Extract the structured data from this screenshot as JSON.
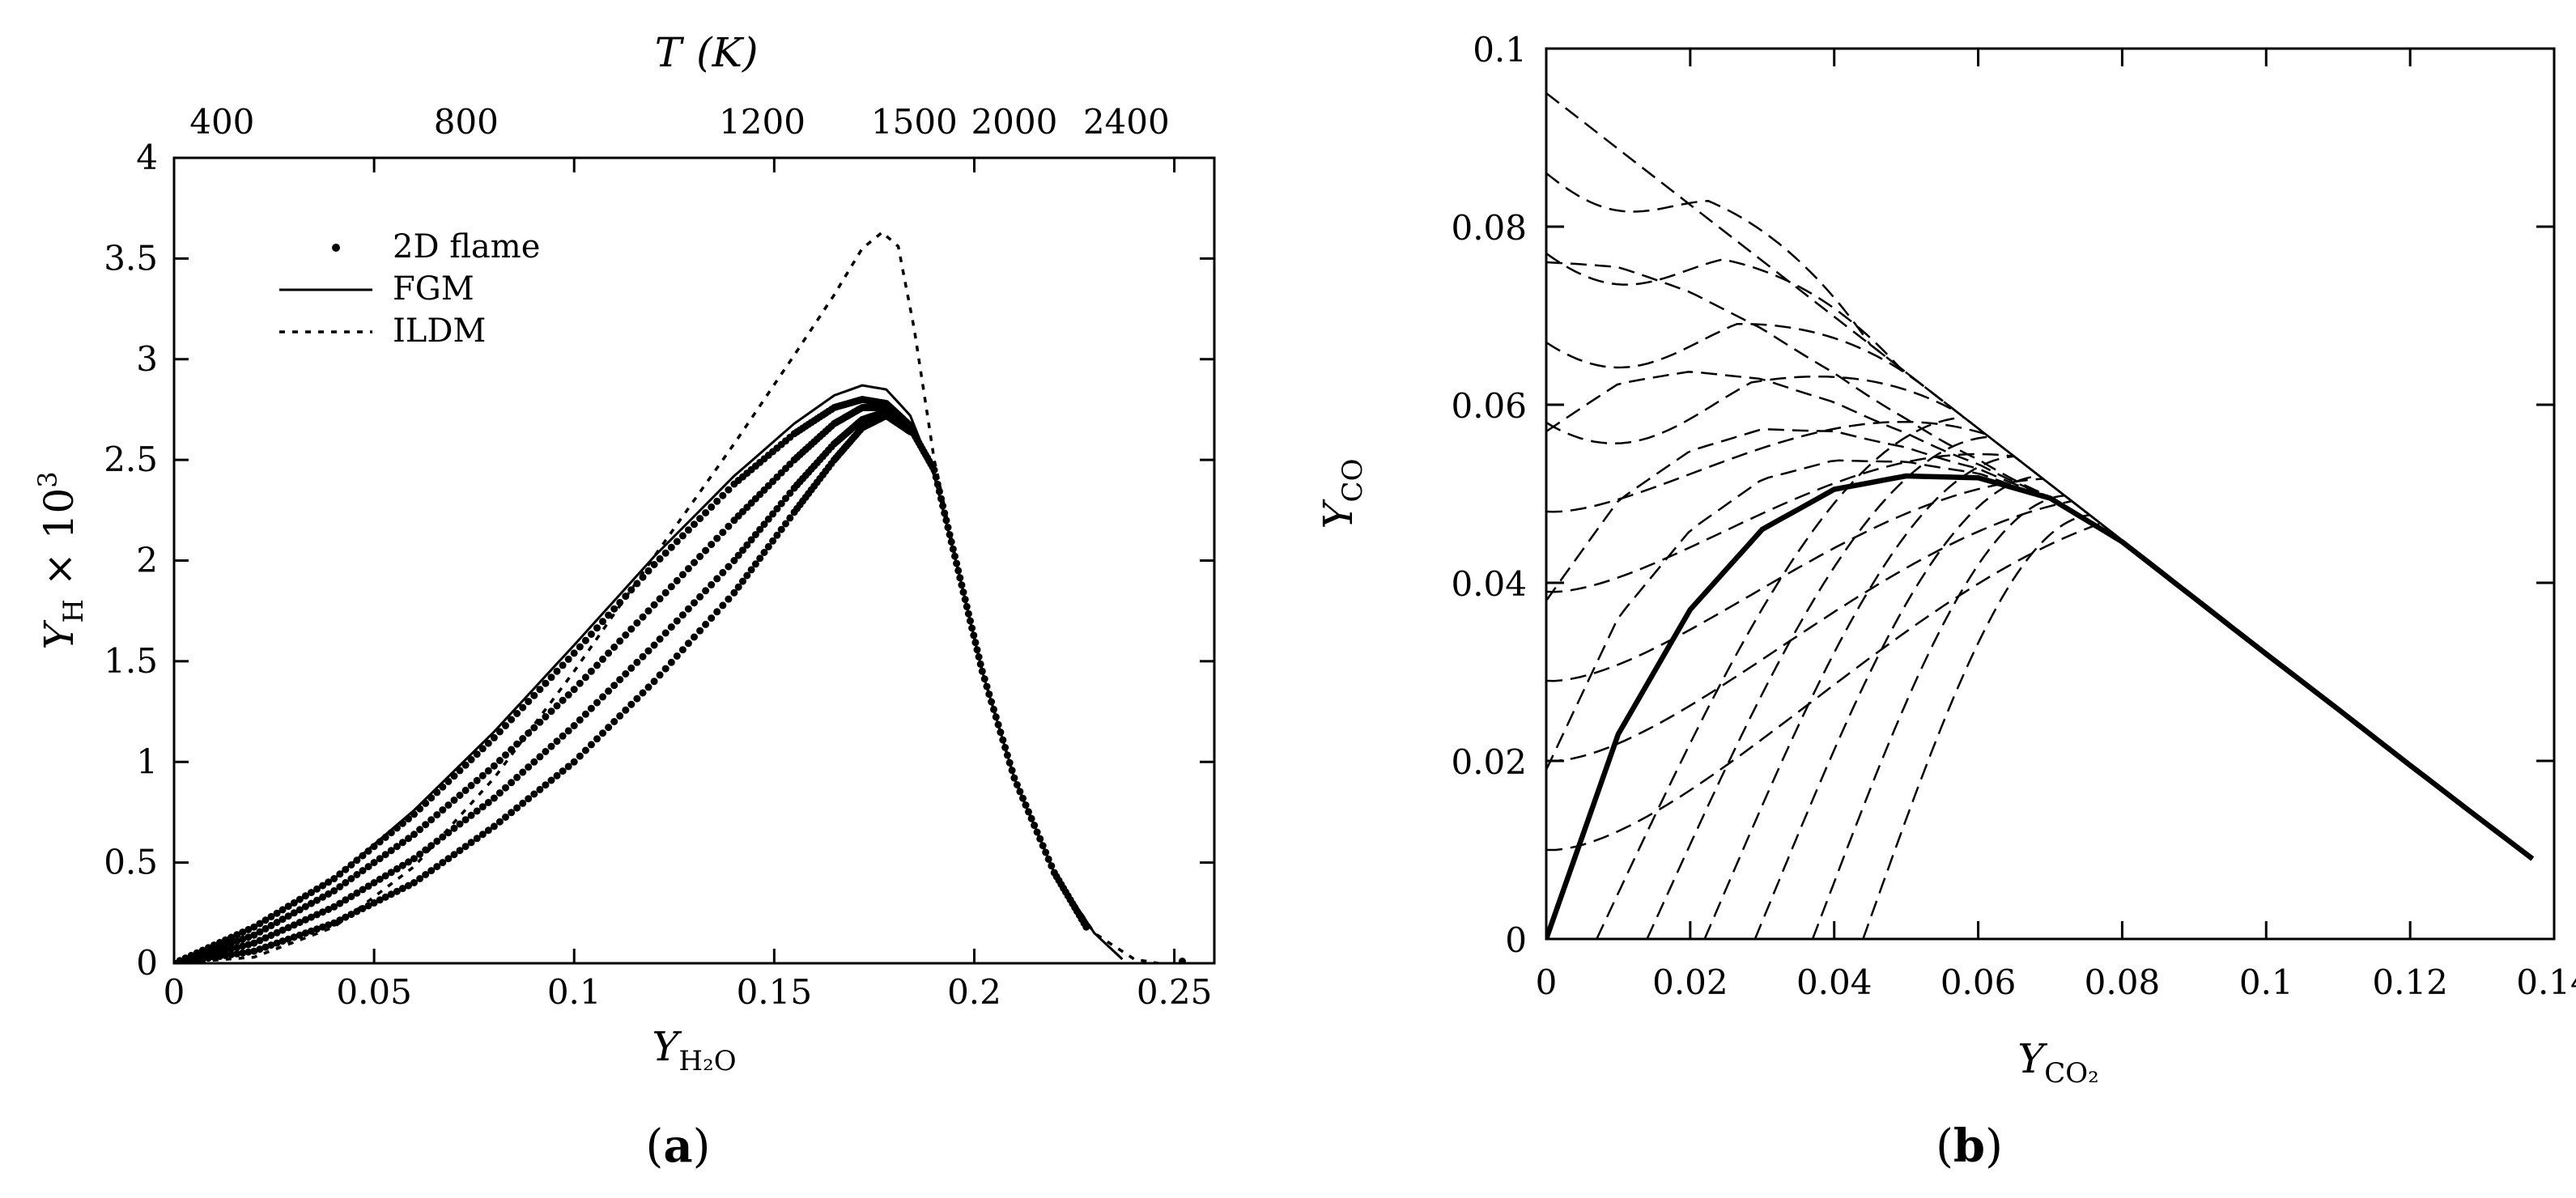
{
  "chart_data": [
    {
      "type": "scatter",
      "panel_label": "a",
      "xlabel": "Y",
      "xlabel_sub": "H₂O",
      "ylabel": "Y",
      "ylabel_sub": "H",
      "ylabel_suffix": " × 10",
      "ylabel_sup": "3",
      "top_axis_label": "T",
      "top_axis_unit": "(K)",
      "xlim": [
        0,
        0.26
      ],
      "ylim": [
        0,
        4
      ],
      "x_ticks": [
        {
          "v": 0,
          "label": "0"
        },
        {
          "v": 0.05,
          "label": "0.05"
        },
        {
          "v": 0.1,
          "label": "0.1"
        },
        {
          "v": 0.15,
          "label": "0.15"
        },
        {
          "v": 0.2,
          "label": "0.2"
        },
        {
          "v": 0.25,
          "label": "0.25"
        }
      ],
      "y_ticks": [
        {
          "v": 0,
          "label": "0"
        },
        {
          "v": 0.5,
          "label": "0.5"
        },
        {
          "v": 1,
          "label": "1"
        },
        {
          "v": 1.5,
          "label": "1.5"
        },
        {
          "v": 2,
          "label": "2"
        },
        {
          "v": 2.5,
          "label": "2.5"
        },
        {
          "v": 3,
          "label": "3"
        },
        {
          "v": 3.5,
          "label": "3.5"
        },
        {
          "v": 4,
          "label": "4"
        }
      ],
      "top_ticks": [
        {
          "x": 0.012,
          "label": "400"
        },
        {
          "x": 0.073,
          "label": "800"
        },
        {
          "x": 0.147,
          "label": "1200"
        },
        {
          "x": 0.185,
          "label": "1500"
        },
        {
          "x": 0.21,
          "label": "2000"
        },
        {
          "x": 0.238,
          "label": "2400"
        }
      ],
      "legend": [
        {
          "name": "2D flame",
          "style": "dots"
        },
        {
          "name": "FGM",
          "style": "solid"
        },
        {
          "name": "ILDM",
          "style": "dotted"
        }
      ],
      "series": [
        {
          "name": "FGM",
          "style": "solid",
          "points": [
            [
              0,
              0
            ],
            [
              0.02,
              0.18
            ],
            [
              0.04,
              0.42
            ],
            [
              0.06,
              0.76
            ],
            [
              0.08,
              1.15
            ],
            [
              0.1,
              1.58
            ],
            [
              0.12,
              2.02
            ],
            [
              0.14,
              2.42
            ],
            [
              0.155,
              2.68
            ],
            [
              0.165,
              2.82
            ],
            [
              0.172,
              2.87
            ],
            [
              0.178,
              2.85
            ],
            [
              0.184,
              2.72
            ],
            [
              0.19,
              2.42
            ],
            [
              0.196,
              1.95
            ],
            [
              0.202,
              1.45
            ],
            [
              0.21,
              0.92
            ],
            [
              0.22,
              0.45
            ],
            [
              0.23,
              0.15
            ],
            [
              0.237,
              0.02
            ]
          ]
        },
        {
          "name": "ILDM",
          "style": "dotted",
          "points": [
            [
              0,
              0
            ],
            [
              0.02,
              0.03
            ],
            [
              0.04,
              0.18
            ],
            [
              0.06,
              0.48
            ],
            [
              0.08,
              0.92
            ],
            [
              0.1,
              1.45
            ],
            [
              0.12,
              2.02
            ],
            [
              0.14,
              2.58
            ],
            [
              0.155,
              3.02
            ],
            [
              0.165,
              3.32
            ],
            [
              0.172,
              3.55
            ],
            [
              0.177,
              3.63
            ],
            [
              0.181,
              3.56
            ],
            [
              0.185,
              3.15
            ],
            [
              0.19,
              2.5
            ],
            [
              0.196,
              1.95
            ],
            [
              0.202,
              1.45
            ],
            [
              0.21,
              0.92
            ],
            [
              0.22,
              0.45
            ],
            [
              0.23,
              0.15
            ],
            [
              0.24,
              0.02
            ],
            [
              0.246,
              0
            ]
          ]
        },
        {
          "name": "2D flame",
          "style": "dots",
          "branches": [
            [
              [
                0,
                0
              ],
              [
                0.02,
                0.18
              ],
              [
                0.04,
                0.42
              ],
              [
                0.06,
                0.74
              ],
              [
                0.08,
                1.12
              ],
              [
                0.1,
                1.54
              ],
              [
                0.12,
                1.98
              ],
              [
                0.14,
                2.38
              ],
              [
                0.155,
                2.63
              ],
              [
                0.165,
                2.76
              ],
              [
                0.172,
                2.8
              ],
              [
                0.178,
                2.78
              ],
              [
                0.184,
                2.67
              ]
            ],
            [
              [
                0,
                0
              ],
              [
                0.02,
                0.14
              ],
              [
                0.04,
                0.36
              ],
              [
                0.06,
                0.64
              ],
              [
                0.08,
                0.98
              ],
              [
                0.1,
                1.36
              ],
              [
                0.12,
                1.78
              ],
              [
                0.14,
                2.2
              ],
              [
                0.155,
                2.5
              ],
              [
                0.165,
                2.68
              ],
              [
                0.172,
                2.76
              ],
              [
                0.178,
                2.76
              ],
              [
                0.184,
                2.66
              ]
            ],
            [
              [
                0,
                0
              ],
              [
                0.02,
                0.1
              ],
              [
                0.04,
                0.28
              ],
              [
                0.06,
                0.52
              ],
              [
                0.08,
                0.82
              ],
              [
                0.1,
                1.18
              ],
              [
                0.12,
                1.58
              ],
              [
                0.14,
                2.0
              ],
              [
                0.155,
                2.36
              ],
              [
                0.165,
                2.58
              ],
              [
                0.172,
                2.7
              ],
              [
                0.178,
                2.74
              ],
              [
                0.184,
                2.65
              ]
            ],
            [
              [
                0,
                0
              ],
              [
                0.02,
                0.06
              ],
              [
                0.04,
                0.2
              ],
              [
                0.06,
                0.4
              ],
              [
                0.08,
                0.68
              ],
              [
                0.1,
                1.0
              ],
              [
                0.12,
                1.4
              ],
              [
                0.14,
                1.84
              ],
              [
                0.155,
                2.24
              ],
              [
                0.165,
                2.5
              ],
              [
                0.172,
                2.66
              ],
              [
                0.178,
                2.72
              ],
              [
                0.184,
                2.64
              ]
            ],
            [
              [
                0.184,
                2.66
              ],
              [
                0.19,
                2.45
              ],
              [
                0.196,
                1.95
              ],
              [
                0.202,
                1.45
              ],
              [
                0.21,
                0.92
              ],
              [
                0.22,
                0.45
              ],
              [
                0.228,
                0.18
              ]
            ]
          ],
          "extra_points": [
            [
              0.252,
              0.01
            ]
          ]
        }
      ]
    },
    {
      "type": "line",
      "panel_label": "b",
      "xlabel": "Y",
      "xlabel_sub": "CO₂",
      "ylabel": "Y",
      "ylabel_sub": "CO",
      "xlim": [
        0,
        0.14
      ],
      "ylim": [
        0,
        0.1
      ],
      "x_ticks": [
        {
          "v": 0,
          "label": "0"
        },
        {
          "v": 0.02,
          "label": "0.02"
        },
        {
          "v": 0.04,
          "label": "0.04"
        },
        {
          "v": 0.06,
          "label": "0.06"
        },
        {
          "v": 0.08,
          "label": "0.08"
        },
        {
          "v": 0.1,
          "label": "0.1"
        },
        {
          "v": 0.12,
          "label": "0.12"
        },
        {
          "v": 0.14,
          "label": "0.14"
        }
      ],
      "y_ticks": [
        {
          "v": 0,
          "label": "0"
        },
        {
          "v": 0.02,
          "label": "0.02"
        },
        {
          "v": 0.04,
          "label": "0.04"
        },
        {
          "v": 0.06,
          "label": "0.06"
        },
        {
          "v": 0.08,
          "label": "0.08"
        },
        {
          "v": 0.1,
          "label": "0.1"
        }
      ],
      "envelope": [
        [
          0,
          0.095
        ],
        [
          0.137,
          0.009
        ]
      ],
      "thick_curve": {
        "name": "solid",
        "points": [
          [
            0,
            0
          ],
          [
            0.01,
            0.023
          ],
          [
            0.02,
            0.037
          ],
          [
            0.03,
            0.046
          ],
          [
            0.04,
            0.0505
          ],
          [
            0.05,
            0.052
          ],
          [
            0.06,
            0.0518
          ],
          [
            0.07,
            0.0495
          ],
          [
            0.08,
            0.0446
          ],
          [
            0.09,
            0.0383
          ],
          [
            0.1,
            0.032
          ],
          [
            0.11,
            0.0258
          ],
          [
            0.12,
            0.0195
          ],
          [
            0.13,
            0.0133
          ],
          [
            0.137,
            0.009
          ]
        ]
      },
      "dashed_upper_start_y": [
        0.086,
        0.077,
        0.067,
        0.058,
        0.048,
        0.039,
        0.029,
        0.02,
        0.01
      ],
      "dashed_lower_start_x": [
        0.007,
        0.014,
        0.022,
        0.029,
        0.037,
        0.044
      ],
      "dashed_top_curve": [
        [
          0,
          0.095
        ],
        [
          0.137,
          0.009
        ]
      ]
    }
  ]
}
